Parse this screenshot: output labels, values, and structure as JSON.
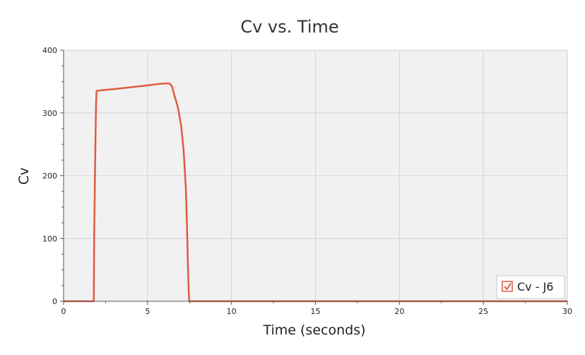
{
  "chart_data": {
    "type": "line",
    "title": "Cv vs. Time",
    "xlabel": "Time (seconds)",
    "ylabel": "Cv",
    "xlim": [
      0,
      30
    ],
    "ylim": [
      0,
      400
    ],
    "x_ticks": [
      "0",
      "5",
      "10",
      "15",
      "20",
      "25",
      "30"
    ],
    "y_ticks": [
      "0",
      "100",
      "200",
      "300",
      "400"
    ],
    "grid": true,
    "legend_position": "bottom-right",
    "series": [
      {
        "name": "Cv - J6",
        "color": "#e05a42",
        "points": [
          [
            0,
            0
          ],
          [
            1.8,
            0
          ],
          [
            1.82,
            100
          ],
          [
            1.86,
            180
          ],
          [
            1.9,
            260
          ],
          [
            1.93,
            310
          ],
          [
            1.96,
            335
          ],
          [
            2.2,
            336
          ],
          [
            3.0,
            338
          ],
          [
            4.0,
            341
          ],
          [
            5.0,
            344
          ],
          [
            5.6,
            346
          ],
          [
            6.0,
            347
          ],
          [
            6.3,
            347
          ],
          [
            6.45,
            343
          ],
          [
            6.6,
            328
          ],
          [
            6.8,
            310
          ],
          [
            7.0,
            280
          ],
          [
            7.15,
            240
          ],
          [
            7.28,
            180
          ],
          [
            7.35,
            120
          ],
          [
            7.4,
            60
          ],
          [
            7.45,
            20
          ],
          [
            7.48,
            0
          ],
          [
            30,
            0
          ]
        ]
      }
    ]
  }
}
